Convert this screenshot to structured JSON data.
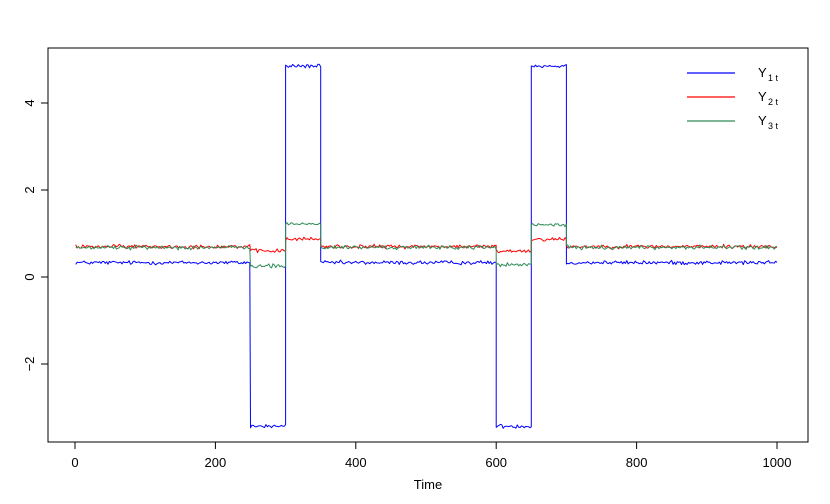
{
  "chart_data": {
    "type": "line",
    "title": "",
    "xlabel": "Time",
    "ylabel": "",
    "xlim": [
      0,
      1000
    ],
    "ylim": [
      -3.5,
      4.9
    ],
    "x_ticks": [
      0,
      200,
      400,
      600,
      800,
      1000
    ],
    "y_ticks": [
      -2,
      0,
      2,
      4
    ],
    "x_tick_labels": [
      "0",
      "200",
      "400",
      "600",
      "800",
      "1000"
    ],
    "y_tick_labels": [
      "−2",
      "0",
      "2",
      "4"
    ],
    "grid": false,
    "legend_position": "top-right",
    "series": [
      {
        "name_main": "Y",
        "name_sub": "1 t",
        "color": "#0000ff",
        "segments": [
          {
            "x": [
              1,
              250
            ],
            "y": 0.33
          },
          {
            "x": [
              250,
              300
            ],
            "y": -3.43
          },
          {
            "x": [
              300,
              350
            ],
            "y": 4.85
          },
          {
            "x": [
              350,
              600
            ],
            "y": 0.33
          },
          {
            "x": [
              600,
              650
            ],
            "y": -3.43
          },
          {
            "x": [
              650,
              700
            ],
            "y": 4.85
          },
          {
            "x": [
              700,
              1000
            ],
            "y": 0.33
          }
        ]
      },
      {
        "name_main": "Y",
        "name_sub": "2 t",
        "color": "#ff0000",
        "segments": [
          {
            "x": [
              1,
              250
            ],
            "y": 0.7
          },
          {
            "x": [
              250,
              300
            ],
            "y": 0.6
          },
          {
            "x": [
              300,
              350
            ],
            "y": 0.87
          },
          {
            "x": [
              350,
              600
            ],
            "y": 0.7
          },
          {
            "x": [
              600,
              650
            ],
            "y": 0.6
          },
          {
            "x": [
              650,
              700
            ],
            "y": 0.87
          },
          {
            "x": [
              700,
              1000
            ],
            "y": 0.7
          }
        ]
      },
      {
        "name_main": "Y",
        "name_sub": "3 t",
        "color": "#2e8b57",
        "segments": [
          {
            "x": [
              1,
              250
            ],
            "y": 0.68
          },
          {
            "x": [
              250,
              300
            ],
            "y": 0.25
          },
          {
            "x": [
              300,
              350
            ],
            "y": 1.22
          },
          {
            "x": [
              350,
              600
            ],
            "y": 0.68
          },
          {
            "x": [
              600,
              650
            ],
            "y": 0.28
          },
          {
            "x": [
              650,
              700
            ],
            "y": 1.2
          },
          {
            "x": [
              700,
              1000
            ],
            "y": 0.68
          }
        ]
      }
    ]
  }
}
